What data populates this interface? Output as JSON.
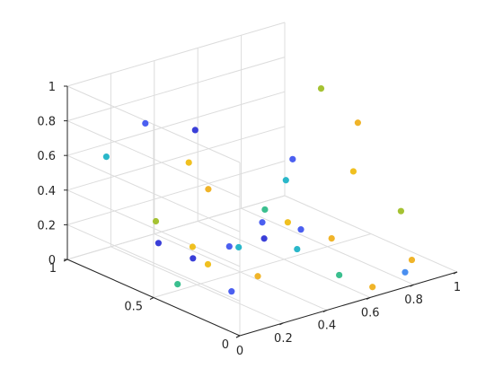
{
  "chart_data": {
    "type": "scatter3d",
    "title": "",
    "xlabel": "",
    "ylabel": "",
    "zlabel": "",
    "xlim": [
      0,
      1
    ],
    "ylim": [
      0,
      1
    ],
    "zlim": [
      0,
      1
    ],
    "grid": true,
    "x_ticks": [
      "0",
      "0.2",
      "0.4",
      "0.6",
      "0.8",
      "1"
    ],
    "y_ticks": [
      "0",
      "0.5",
      "1"
    ],
    "z_ticks": [
      "0",
      "0.2",
      "0.4",
      "0.6",
      "0.8",
      "1"
    ],
    "points": [
      {
        "x": 0.95,
        "y": 0.2,
        "z": 0.0,
        "color": "#f0b429"
      },
      {
        "x": 0.7,
        "y": 0.55,
        "z": 0.0,
        "color": "#2ab7c9"
      },
      {
        "x": 0.7,
        "y": 0.35,
        "z": 0.15,
        "color": "#f0b429"
      },
      {
        "x": 0.6,
        "y": 0.18,
        "z": 0.05,
        "color": "#3bbf8f"
      },
      {
        "x": 0.65,
        "y": 0.05,
        "z": 0.02,
        "color": "#f0b429"
      },
      {
        "x": 0.55,
        "y": 0.7,
        "z": 0.0,
        "color": "#2ab7c9"
      },
      {
        "x": 0.75,
        "y": 0.8,
        "z": 0.1,
        "color": "#3bbf8f"
      },
      {
        "x": 0.8,
        "y": 0.05,
        "z": 0.05,
        "color": "#4a8ff0"
      },
      {
        "x": 0.3,
        "y": 0.65,
        "z": 0.05,
        "color": "#3a3fd8"
      },
      {
        "x": 0.4,
        "y": 0.4,
        "z": 0.02,
        "color": "#f0b429"
      },
      {
        "x": 0.2,
        "y": 0.3,
        "z": 0.05,
        "color": "#4b5ff0"
      },
      {
        "x": 0.25,
        "y": 0.5,
        "z": 0.1,
        "color": "#f0c020"
      },
      {
        "x": 0.15,
        "y": 0.55,
        "z": 0.0,
        "color": "#3bbf8f"
      },
      {
        "x": 0.3,
        "y": 0.85,
        "z": 0.05,
        "color": "#3a3fd8"
      },
      {
        "x": 0.1,
        "y": 0.4,
        "z": 0.3,
        "color": "#f0c020"
      },
      {
        "x": 0.15,
        "y": 0.25,
        "z": 0.35,
        "color": "#4b5ff0"
      },
      {
        "x": 0.05,
        "y": 0.55,
        "z": 0.4,
        "color": "#a5c232"
      },
      {
        "x": 0.35,
        "y": 0.3,
        "z": 0.3,
        "color": "#3a3fd8"
      },
      {
        "x": 0.5,
        "y": 0.5,
        "z": 0.25,
        "color": "#4b5ff0"
      },
      {
        "x": 0.45,
        "y": 0.75,
        "z": 0.35,
        "color": "#f0b429"
      },
      {
        "x": 0.4,
        "y": 0.15,
        "z": 0.4,
        "color": "#4b5ff0"
      },
      {
        "x": 0.45,
        "y": 0.3,
        "z": 0.6,
        "color": "#2ab7c9"
      },
      {
        "x": 0.6,
        "y": 0.45,
        "z": 0.6,
        "color": "#4b5ff0"
      },
      {
        "x": 0.3,
        "y": 0.1,
        "z": 0.5,
        "color": "#f0c020"
      },
      {
        "x": 0.9,
        "y": 0.45,
        "z": 0.7,
        "color": "#f0b429"
      },
      {
        "x": 0.8,
        "y": 0.35,
        "z": 0.5,
        "color": "#f0c020"
      },
      {
        "x": 0.9,
        "y": 0.2,
        "z": 0.3,
        "color": "#a5c232"
      },
      {
        "x": 0.85,
        "y": 0.6,
        "z": 0.85,
        "color": "#a5c232"
      },
      {
        "x": 0.2,
        "y": 0.8,
        "z": 0.8,
        "color": "#4b5ff0"
      },
      {
        "x": 0.35,
        "y": 0.7,
        "z": 0.75,
        "color": "#3a3fd8"
      },
      {
        "x": 0.1,
        "y": 0.9,
        "z": 0.6,
        "color": "#2ab7c9"
      },
      {
        "x": 0.4,
        "y": 0.8,
        "z": 0.5,
        "color": "#f0c020"
      }
    ]
  }
}
